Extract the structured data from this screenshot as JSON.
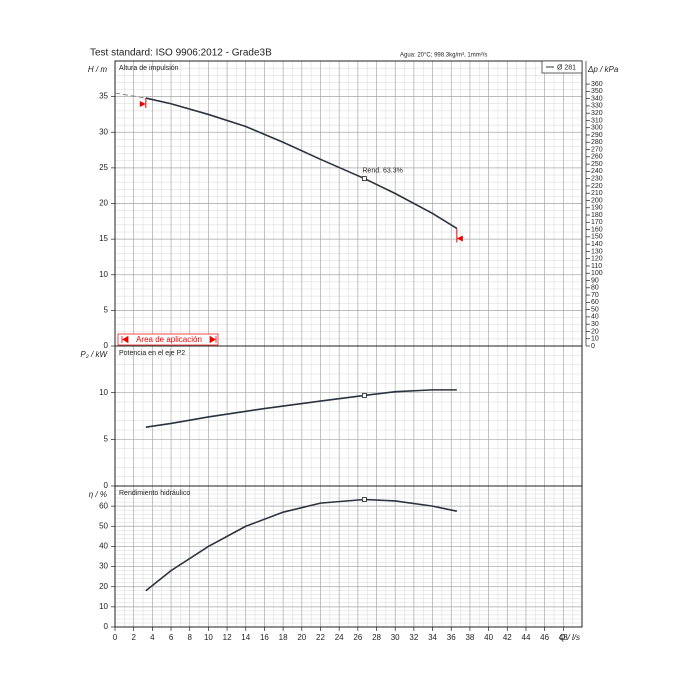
{
  "header": {
    "title": "Test standard: ISO 9906:2012 - Grade3B",
    "conditions": "Agua: 20°C; 998.3kg/m³, 1mm²/s",
    "application_area": "Area de aplicación"
  },
  "chart_data": [
    {
      "type": "line",
      "title": "Altura de impulsión",
      "ylabel": "H / m",
      "y2label": "Δp / kPa",
      "x": [
        3.3,
        6,
        10,
        14,
        18,
        22,
        26.7,
        30,
        34,
        36.6
      ],
      "series": [
        {
          "name": "Ø 281",
          "color": "#2b3340",
          "values": [
            34.8,
            34,
            32.5,
            30.8,
            28.6,
            26.2,
            23.5,
            21.4,
            18.6,
            16.5
          ]
        },
        {
          "color": "#8a8a8a",
          "dashed": true,
          "x": [
            0,
            3.3
          ],
          "values": [
            35.5,
            34.8
          ]
        }
      ],
      "duty_point": {
        "x": 26.7,
        "y": 23.5
      },
      "annotation": {
        "text": "Rend.  63.3%",
        "x": 26.7,
        "y": 23.5
      },
      "ylim": [
        0,
        40
      ],
      "yticks": [
        0,
        5,
        10,
        15,
        20,
        25,
        30,
        35
      ],
      "y2lim": [
        0,
        391.7
      ],
      "y2ticks": [
        0,
        10,
        20,
        30,
        40,
        50,
        60,
        70,
        80,
        90,
        100,
        110,
        120,
        130,
        140,
        150,
        160,
        170,
        180,
        190,
        200,
        210,
        220,
        230,
        240,
        250,
        260,
        270,
        280,
        290,
        300,
        310,
        320,
        330,
        340,
        350,
        360
      ],
      "grid": true
    },
    {
      "type": "line",
      "title": "Potencia en el eje P2",
      "ylabel": "P₂ / kW",
      "x": [
        3.3,
        6,
        10,
        16,
        22,
        26.7,
        30,
        34,
        36.6
      ],
      "series": [
        {
          "color": "#2b3340",
          "values": [
            6.3,
            6.7,
            7.4,
            8.3,
            9.1,
            9.7,
            10.1,
            10.3,
            10.3
          ]
        }
      ],
      "duty_point": {
        "x": 26.7,
        "y": 9.7
      },
      "ylim": [
        0,
        15
      ],
      "yticks": [
        0,
        5,
        10
      ],
      "grid": true
    },
    {
      "type": "line",
      "title": "Rendimiento hidráulico",
      "ylabel": "η / %",
      "xlabel": "Q / l/s",
      "x": [
        3.3,
        6,
        10,
        14,
        18,
        22,
        26.7,
        30,
        34,
        36.6
      ],
      "series": [
        {
          "color": "#2b3340",
          "values": [
            18,
            28,
            40,
            50,
            57,
            61.5,
            63.3,
            62.6,
            60,
            57.5
          ]
        }
      ],
      "duty_point": {
        "x": 26.7,
        "y": 63.3
      },
      "ylim": [
        0,
        70
      ],
      "yticks": [
        0,
        10,
        20,
        30,
        40,
        50,
        60
      ],
      "xlim": [
        0,
        50
      ],
      "xticks": [
        0,
        2,
        4,
        6,
        8,
        10,
        12,
        14,
        16,
        18,
        20,
        22,
        24,
        26,
        28,
        30,
        32,
        34,
        36,
        38,
        40,
        42,
        44,
        46,
        48
      ],
      "grid": true
    }
  ]
}
